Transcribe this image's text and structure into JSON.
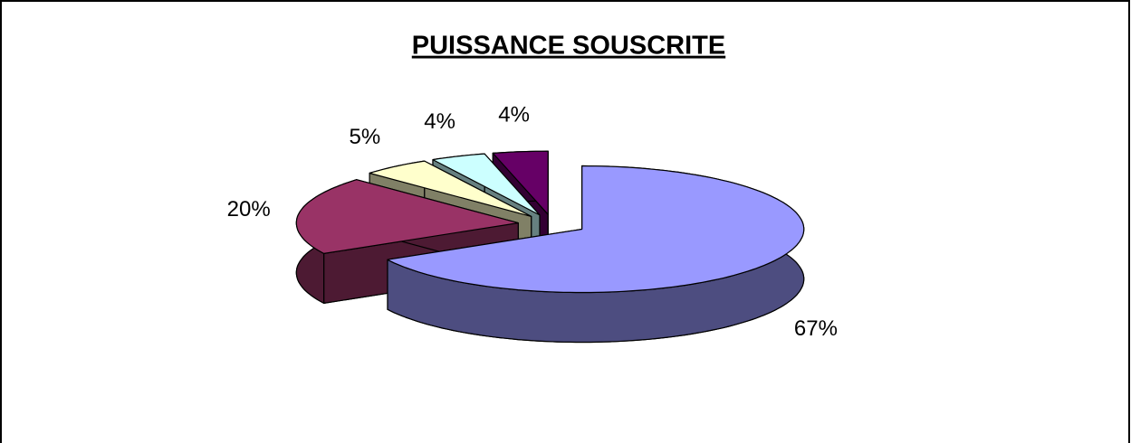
{
  "chart_data": {
    "type": "pie3d",
    "title": "PUISSANCE SOUSCRITE",
    "values": [
      67,
      20,
      5,
      4,
      4
    ],
    "value_labels": [
      "67%",
      "20%",
      "5%",
      "4%",
      "4%"
    ],
    "colors": [
      "#9999ff",
      "#993366",
      "#ffffcc",
      "#ccffff",
      "#660066"
    ],
    "side_colors": [
      "#4d4d80",
      "#4d1a33",
      "#808066",
      "#668080",
      "#330033"
    ],
    "exploded": true
  }
}
